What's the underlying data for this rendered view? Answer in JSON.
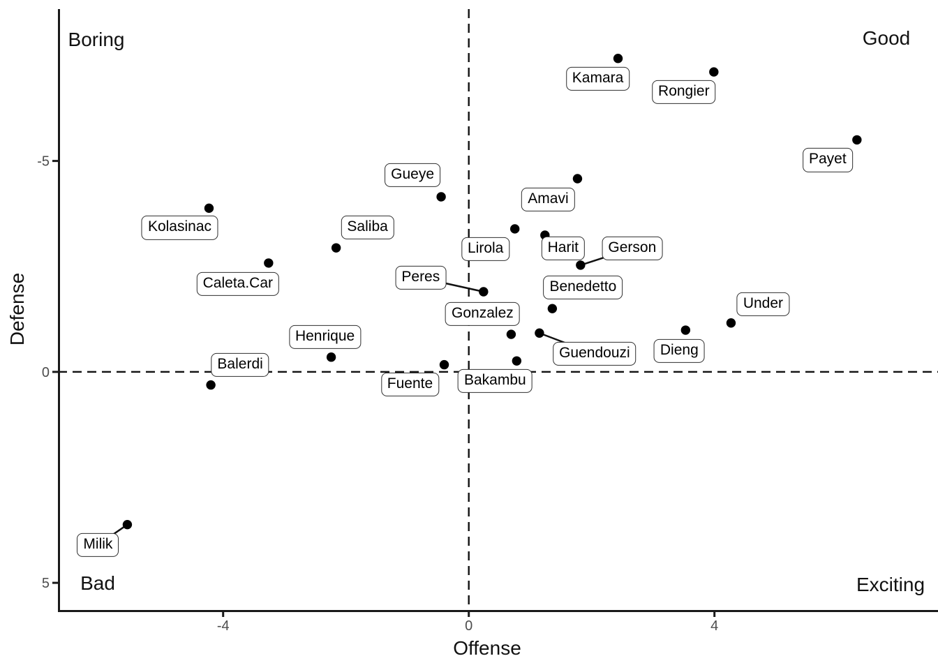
{
  "chart_data": {
    "type": "scatter",
    "title": "",
    "xlabel": "Offense",
    "ylabel": "Defense",
    "xlim": [
      -6.69,
      7.64
    ],
    "ylim": [
      -8.6,
      5.66
    ],
    "y_axis_reversed_note": "y axis runs from -8.6 at top to 5.66 at bottom (negative defense = up)",
    "grid": false,
    "x_ticks": [
      {
        "value": -4,
        "label": "-4"
      },
      {
        "value": 0,
        "label": "0"
      },
      {
        "value": 4,
        "label": "4"
      }
    ],
    "y_ticks": [
      {
        "value": -5,
        "label": "-5"
      },
      {
        "value": 0,
        "label": "0"
      },
      {
        "value": 5,
        "label": "5"
      }
    ],
    "reference_lines": {
      "vertical_x": 0,
      "horizontal_y": 0,
      "style": "dashed"
    },
    "quadrants": [
      {
        "id": "boring",
        "text": "Boring"
      },
      {
        "id": "good",
        "text": "Good"
      },
      {
        "id": "bad",
        "text": "Bad"
      },
      {
        "id": "exciting",
        "text": "Exciting"
      }
    ],
    "series": [
      {
        "name": "players",
        "marker": "filled-circle",
        "points": [
          {
            "label": "Kamara",
            "x": 2.43,
            "y": -7.43,
            "label_dx": -29,
            "label_dy": 29,
            "leader": false
          },
          {
            "label": "Rongier",
            "x": 3.99,
            "y": -7.11,
            "label_dx": -43,
            "label_dy": 29,
            "leader": false
          },
          {
            "label": "Payet",
            "x": 6.32,
            "y": -5.5,
            "label_dx": -42,
            "label_dy": 29,
            "leader": false
          },
          {
            "label": "Amavi",
            "x": 1.77,
            "y": -4.58,
            "label_dx": -42,
            "label_dy": 30,
            "leader": false
          },
          {
            "label": "Gueye",
            "x": -0.45,
            "y": -4.15,
            "label_dx": -41,
            "label_dy": -31,
            "leader": false
          },
          {
            "label": "Kolasinac",
            "x": -4.23,
            "y": -3.88,
            "label_dx": -42,
            "label_dy": 28,
            "leader": false
          },
          {
            "label": "Lirola",
            "x": 0.75,
            "y": -3.39,
            "label_dx": -42,
            "label_dy": 29,
            "leader": false
          },
          {
            "label": "Harit",
            "x": 1.24,
            "y": -3.24,
            "label_dx": 26,
            "label_dy": 19,
            "leader": false
          },
          {
            "label": "Saliba",
            "x": -2.16,
            "y": -2.94,
            "label_dx": 45,
            "label_dy": -29,
            "leader": false
          },
          {
            "label": "Caleta.Car",
            "x": -3.26,
            "y": -2.58,
            "label_dx": -44,
            "label_dy": 30,
            "leader": false
          },
          {
            "label": "Gerson",
            "x": 1.82,
            "y": -2.53,
            "label_dx": 74,
            "label_dy": -24,
            "leader": true
          },
          {
            "label": "Peres",
            "x": 0.24,
            "y": -1.9,
            "label_dx": -90,
            "label_dy": -20,
            "leader": true
          },
          {
            "label": "Benedetto",
            "x": 1.36,
            "y": -1.5,
            "label_dx": 44,
            "label_dy": -30,
            "leader": false
          },
          {
            "label": "Under",
            "x": 4.27,
            "y": -1.16,
            "label_dx": 46,
            "label_dy": -27,
            "leader": false
          },
          {
            "label": "Dieng",
            "x": 3.53,
            "y": -0.99,
            "label_dx": -9,
            "label_dy": 30,
            "leader": false
          },
          {
            "label": "Guendouzi",
            "x": 1.15,
            "y": -0.92,
            "label_dx": 79,
            "label_dy": 30,
            "leader": true
          },
          {
            "label": "Gonzalez",
            "x": 0.69,
            "y": -0.89,
            "label_dx": -41,
            "label_dy": -29,
            "leader": false
          },
          {
            "label": "Henrique",
            "x": -2.24,
            "y": -0.35,
            "label_dx": -9,
            "label_dy": -29,
            "leader": false
          },
          {
            "label": "Bakambu",
            "x": 0.78,
            "y": -0.26,
            "label_dx": -31,
            "label_dy": 29,
            "leader": false
          },
          {
            "label": "Fuente",
            "x": -0.4,
            "y": -0.17,
            "label_dx": -49,
            "label_dy": 28,
            "leader": false
          },
          {
            "label": "Balerdi",
            "x": -4.2,
            "y": 0.31,
            "label_dx": 42,
            "label_dy": -29,
            "leader": false
          },
          {
            "label": "Milik",
            "x": -5.56,
            "y": 3.62,
            "label_dx": -42,
            "label_dy": 29,
            "leader": true
          }
        ]
      }
    ],
    "legend": "none"
  },
  "colors": {
    "background": "#ffffff",
    "point": "#000000",
    "axis_line": "#1a1a1a",
    "reference_line": "#111111",
    "leader_line": "#111111",
    "tick_label": "#4d4d4d",
    "label_box_border": "#2e2e2e",
    "label_box_fill": "#ffffff",
    "text": "#111111"
  }
}
